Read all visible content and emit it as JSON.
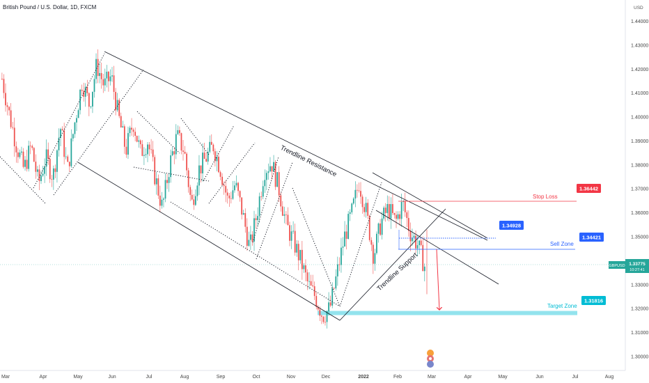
{
  "symbol_header": "British Pound / U.S. Dollar, 1D, FXCM",
  "currency_label": "USD",
  "colors": {
    "up": "#26a69a",
    "down": "#ef5350",
    "stop_loss": "#f23645",
    "entry": "#2962ff",
    "sell_zone": "#2962ff",
    "target": "#00bcd4",
    "target_band": "#80deea",
    "price_tag": "#26a69a"
  },
  "chart_data": {
    "type": "candlestick",
    "ylim": [
      1.2945,
      1.4485
    ],
    "y_ticks": [
      "1.44000",
      "1.43000",
      "1.42000",
      "1.41000",
      "1.40000",
      "1.39000",
      "1.38000",
      "1.37000",
      "1.36000",
      "1.35000",
      "1.34000",
      "1.33000",
      "1.32000",
      "1.31000",
      "1.30000"
    ],
    "x_ticks": [
      "Mar",
      "Apr",
      "May",
      "Jun",
      "Jul",
      "Aug",
      "Sep",
      "Oct",
      "Nov",
      "Dec",
      "2022",
      "Feb",
      "Mar",
      "Apr",
      "May",
      "Jun",
      "Jul",
      "Aug"
    ],
    "anchors": [
      [
        1.416,
        1.42
      ],
      [
        1.401,
        1.41
      ],
      [
        1.388,
        1.39
      ],
      [
        1.378,
        1.38
      ],
      [
        1.388,
        1.39
      ],
      [
        1.372,
        1.37
      ],
      [
        1.383,
        1.38
      ],
      [
        1.375,
        1.375
      ],
      [
        1.396,
        1.4
      ],
      [
        1.378,
        1.38
      ],
      [
        1.398,
        1.4
      ],
      [
        1.415,
        1.415
      ],
      [
        1.405,
        1.405
      ],
      [
        1.422,
        1.42
      ],
      [
        1.413,
        1.415
      ],
      [
        1.417,
        1.42
      ],
      [
        1.4,
        1.4
      ],
      [
        1.386,
        1.385
      ],
      [
        1.398,
        1.4
      ],
      [
        1.385,
        1.385
      ],
      [
        1.39,
        1.39
      ],
      [
        1.375,
        1.375
      ],
      [
        1.362,
        1.36
      ],
      [
        1.38,
        1.38
      ],
      [
        1.392,
        1.39
      ],
      [
        1.386,
        1.385
      ],
      [
        1.363,
        1.365
      ],
      [
        1.378,
        1.38
      ],
      [
        1.383,
        1.385
      ],
      [
        1.388,
        1.39
      ],
      [
        1.378,
        1.38
      ],
      [
        1.365,
        1.365
      ],
      [
        1.372,
        1.37
      ],
      [
        1.36,
        1.36
      ],
      [
        1.345,
        1.345
      ],
      [
        1.36,
        1.36
      ],
      [
        1.378,
        1.38
      ],
      [
        1.381,
        1.38
      ],
      [
        1.37,
        1.37
      ],
      [
        1.355,
        1.355
      ],
      [
        1.348,
        1.35
      ],
      [
        1.34,
        1.34
      ],
      [
        1.33,
        1.33
      ],
      [
        1.325,
        1.325
      ],
      [
        1.317,
        1.32
      ],
      [
        1.32,
        1.32
      ],
      [
        1.335,
        1.335
      ],
      [
        1.35,
        1.35
      ],
      [
        1.36,
        1.36
      ],
      [
        1.373,
        1.375
      ],
      [
        1.36,
        1.36
      ],
      [
        1.342,
        1.34
      ],
      [
        1.356,
        1.355
      ],
      [
        1.362,
        1.36
      ],
      [
        1.356,
        1.355
      ],
      [
        1.364,
        1.365
      ],
      [
        1.352,
        1.35
      ],
      [
        1.347,
        1.345
      ],
      [
        1.3378,
        1.335
      ]
    ],
    "trendline_resistance": [
      [
        0,
        1.4275
      ],
      [
        1,
        1.3445
      ]
    ],
    "trendline_support": [
      [
        0,
        1.3185
      ],
      [
        1,
        1.3575
      ]
    ],
    "channel_lower": [
      [
        0,
        1.38
      ],
      [
        1,
        1.313
      ]
    ],
    "upper_short_line": [
      [
        0,
        1.3733
      ],
      [
        1,
        1.3475
      ]
    ],
    "lower_short_line": [
      [
        0,
        1.3515
      ],
      [
        1,
        1.3295
      ]
    ],
    "annotations": {
      "resistance_label": "Trendline Resistance",
      "support_label": "Trendline Support",
      "stop_loss_label": "Stop Loss",
      "sell_zone_label": "Sell Zone",
      "target_zone_label": "Target Zone"
    },
    "levels": {
      "stop_loss": "1.36442",
      "entry": "1.34928",
      "sell_zone": "1.34421",
      "target": "1.31816"
    },
    "current_price": {
      "symbol": "GBPUSD",
      "price": "1.33775",
      "countdown": "10:27:41"
    },
    "grid": false,
    "legend": "none"
  }
}
